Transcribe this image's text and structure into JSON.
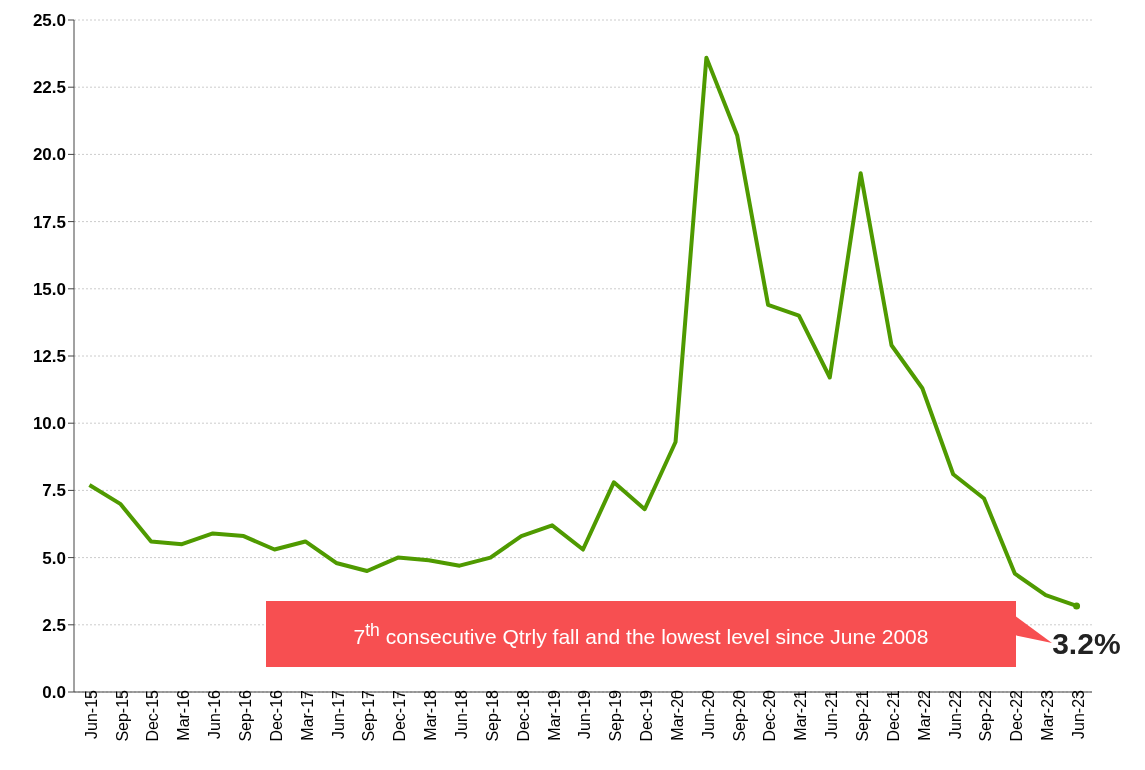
{
  "chart_data": {
    "type": "line",
    "categories": [
      "Jun-15",
      "Sep-15",
      "Dec-15",
      "Mar-16",
      "Jun-16",
      "Sep-16",
      "Dec-16",
      "Mar-17",
      "Jun-17",
      "Sep-17",
      "Dec-17",
      "Mar-18",
      "Jun-18",
      "Sep-18",
      "Dec-18",
      "Mar-19",
      "Jun-19",
      "Sep-19",
      "Dec-19",
      "Mar-20",
      "Jun-20",
      "Sep-20",
      "Dec-20",
      "Mar-21",
      "Jun-21",
      "Sep-21",
      "Dec-21",
      "Mar-22",
      "Jun-22",
      "Sep-22",
      "Dec-22",
      "Mar-23",
      "Jun-23"
    ],
    "series": [
      {
        "color": "#4f9a00",
        "values": [
          7.7,
          7.0,
          5.6,
          5.5,
          5.9,
          5.8,
          5.3,
          5.6,
          4.8,
          4.5,
          5.0,
          4.9,
          4.7,
          5.0,
          5.8,
          6.2,
          5.3,
          7.8,
          6.8,
          9.3,
          23.6,
          20.7,
          14.4,
          14.0,
          11.7,
          19.3,
          12.9,
          11.3,
          8.1,
          7.2,
          4.4,
          3.6,
          3.2
        ],
        "value_labels": [
          null,
          null,
          null,
          null,
          null,
          null,
          null,
          null,
          null,
          null,
          null,
          null,
          null,
          null,
          null,
          null,
          null,
          null,
          null,
          null,
          null,
          null,
          null,
          null,
          null,
          null,
          null,
          null,
          null,
          null,
          null,
          null,
          "3.2%"
        ]
      }
    ],
    "ylim": [
      0,
      25
    ],
    "yticks": [
      {
        "value": 0,
        "label": "0.0"
      },
      {
        "value": 2.5,
        "label": "2.5"
      },
      {
        "value": 5,
        "label": "5.0"
      },
      {
        "value": 7.5,
        "label": "7.5"
      },
      {
        "value": 10,
        "label": "10.0"
      },
      {
        "value": 12.5,
        "label": "12.5"
      },
      {
        "value": 15,
        "label": "15.0"
      },
      {
        "value": 17.5,
        "label": "17.5"
      },
      {
        "value": 20,
        "label": "20.0"
      },
      {
        "value": 22.5,
        "label": "22.5"
      },
      {
        "value": 25,
        "label": "25.0"
      }
    ],
    "grid": "y",
    "marker": "none",
    "line_style": "solid",
    "annotations": [
      "7$^{th}$ consecutive Qtrly fall and the lowest level since June 2008"
    ]
  }
}
